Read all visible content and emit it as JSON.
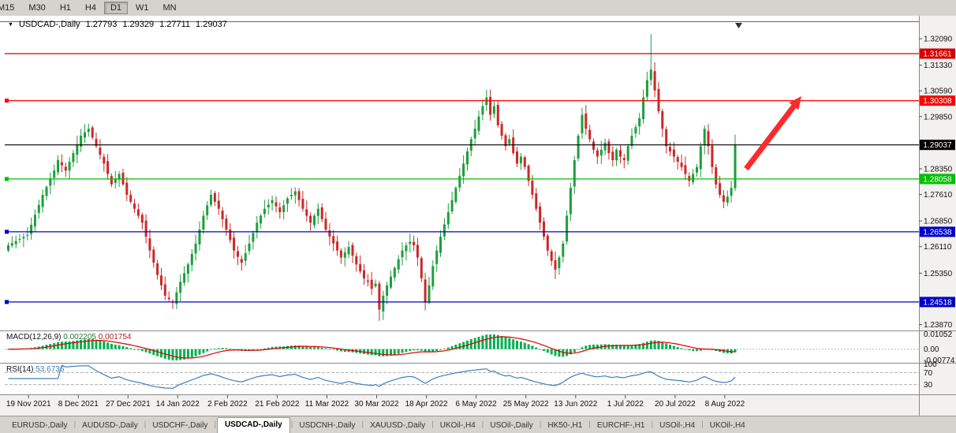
{
  "toolbar": {
    "timeframes": [
      "M15",
      "M30",
      "H1",
      "H4",
      "D1",
      "W1",
      "MN"
    ],
    "active": "D1"
  },
  "chart_title": {
    "dropdown_icon": "▼",
    "symbol": "USDCAD-,Daily",
    "open": "1.27793",
    "high": "1.29329",
    "low": "1.27711",
    "close": "1.29037"
  },
  "chart_data": {
    "type": "candlestick",
    "title": "USDCAD-,Daily",
    "up_color": "#1d9e3c",
    "down_color": "#cc2727",
    "x_labels": [
      "19 Nov 2021",
      "8 Dec 2021",
      "27 Dec 2021",
      "14 Jan 2022",
      "2 Feb 2022",
      "21 Feb 2022",
      "11 Mar 2022",
      "30 Mar 2022",
      "18 Apr 2022",
      "6 May 2022",
      "25 May 2022",
      "13 Jun 2022",
      "1 Jul 2022",
      "20 Jul 2022",
      "8 Aug 2022"
    ],
    "closes": [
      1.2615,
      1.2621,
      1.2627,
      1.2633,
      1.2639,
      1.2645,
      1.2674,
      1.2703,
      1.2731,
      1.276,
      1.2783,
      1.2807,
      1.283,
      1.286,
      1.2845,
      1.283,
      1.2855,
      1.288,
      1.2905,
      1.293,
      1.294,
      1.295,
      1.2925,
      1.29,
      1.2875,
      1.285,
      1.282,
      1.279,
      1.2805,
      1.282,
      1.279,
      1.276,
      1.274,
      1.272,
      1.27,
      1.268,
      1.264,
      1.26,
      1.2565,
      1.253,
      1.25,
      1.247,
      1.246,
      1.245,
      1.248,
      1.251,
      1.2535,
      1.256,
      1.259,
      1.262,
      1.266,
      1.27,
      1.273,
      1.276,
      1.274,
      1.272,
      1.269,
      1.266,
      1.263,
      1.26,
      1.2582,
      1.2565,
      1.2592,
      1.262,
      1.265,
      1.268,
      1.27,
      1.272,
      1.2732,
      1.2745,
      1.2727,
      1.271,
      1.273,
      1.275,
      1.276,
      1.277,
      1.2745,
      1.272,
      1.27,
      1.268,
      1.27,
      1.272,
      1.269,
      1.266,
      1.264,
      1.262,
      1.26,
      1.258,
      1.2595,
      1.261,
      1.2585,
      1.256,
      1.254,
      1.252,
      1.251,
      1.249,
      1.2505,
      1.243,
      1.247,
      1.25,
      1.2525,
      1.255,
      1.2575,
      1.26,
      1.2615,
      1.2625,
      1.2615,
      1.258,
      1.252,
      1.245,
      1.25,
      1.2555,
      1.26,
      1.264,
      1.2675,
      1.271,
      1.2745,
      1.278,
      1.2815,
      1.285,
      1.2885,
      1.292,
      1.295,
      1.2985,
      1.3015,
      1.304,
      1.299,
      1.3015,
      1.296,
      1.293,
      1.29,
      1.292,
      1.288,
      1.285,
      1.287,
      1.284,
      1.28,
      1.276,
      1.272,
      1.268,
      1.264,
      1.26,
      1.257,
      1.2545,
      1.258,
      1.262,
      1.27,
      1.278,
      1.286,
      1.293,
      1.299,
      1.295,
      1.292,
      1.289,
      1.287,
      1.289,
      1.291,
      1.288,
      1.286,
      1.289,
      1.287,
      1.286,
      1.29,
      1.293,
      1.2955,
      1.298,
      1.304,
      1.309,
      1.312,
      1.306,
      1.3,
      1.295,
      1.29,
      1.2885,
      1.287,
      1.2855,
      1.284,
      1.282,
      1.28,
      1.282,
      1.284,
      1.29,
      1.295,
      1.29,
      1.284,
      1.279,
      1.276,
      1.274,
      1.2755,
      1.278,
      1.29037
    ],
    "key_candles": {
      "21": {
        "h": 1.2965
      },
      "43": {
        "l": 1.2432
      },
      "97": {
        "o": 1.2505,
        "h": 1.2512,
        "l": 1.2398,
        "c": 1.243
      },
      "109": {
        "l": 1.2428
      },
      "125": {
        "h": 1.3062
      },
      "143": {
        "l": 1.2518
      },
      "150": {
        "h": 1.301
      },
      "168": {
        "o": 1.309,
        "h": 1.3222,
        "l": 1.3075,
        "c": 1.312
      },
      "190": {
        "o": 1.27793,
        "h": 1.29329,
        "l": 1.27711,
        "c": 1.29037
      }
    },
    "price_axis": {
      "ticks": [
        "1.32090",
        "1.31330",
        "1.30590",
        "1.29850",
        "1.28350",
        "1.27610",
        "1.26850",
        "1.26110",
        "1.25350",
        "1.23870"
      ]
    },
    "horizontal_lines": [
      {
        "price": 1.31661,
        "label": "1.31661",
        "color": "#d40000",
        "handle": false
      },
      {
        "price": 1.30308,
        "label": "1.30308",
        "color": "#ff0000",
        "handle": true
      },
      {
        "price": 1.29037,
        "label": "1.29037",
        "color": "#000000",
        "handle": false
      },
      {
        "price": 1.28058,
        "label": "1.28058",
        "color": "#00c000",
        "handle": true
      },
      {
        "price": 1.26538,
        "label": "1.26538",
        "color": "#0000cc",
        "handle": true
      },
      {
        "price": 1.24518,
        "label": "1.24518",
        "color": "#0000cc",
        "handle": true
      }
    ],
    "indicators": {
      "macd": {
        "label": "MACD(12,26,9)",
        "value_main": "0.002205",
        "value_signal": "0.001754",
        "scale_labels": [
          "0.01052",
          "0.00",
          "-0.00774"
        ],
        "histogram_color": "#00b050",
        "signal_color": "#e00000",
        "params": [
          12,
          26,
          9
        ]
      },
      "rsi": {
        "label": "RSI(14)",
        "value": "53.6736",
        "scale_labels": [
          "100",
          "70",
          "30"
        ],
        "levels": [
          70,
          30
        ],
        "line_color": "#3f7fbf",
        "period": 14
      }
    },
    "annotation": {
      "shape": "arrow-up-right",
      "color": "#fb2b2b",
      "from": [
        946,
        194
      ],
      "to": [
        1016,
        102
      ]
    }
  },
  "tabs": {
    "separator": "|",
    "active": "USDCAD-,Daily",
    "items": [
      "EURUSD-,Daily",
      "AUDUSD-,Daily",
      "USDCHF-,Daily",
      "USDCAD-,Daily",
      "USDCNH-,Daily",
      "XAUUSD-,Daily",
      "UKOil-,H4",
      "USOil-,Daily",
      "HK50-,H1",
      "EURCHF-,H1",
      "USOil-,H4",
      "UKOil-,H4"
    ]
  }
}
